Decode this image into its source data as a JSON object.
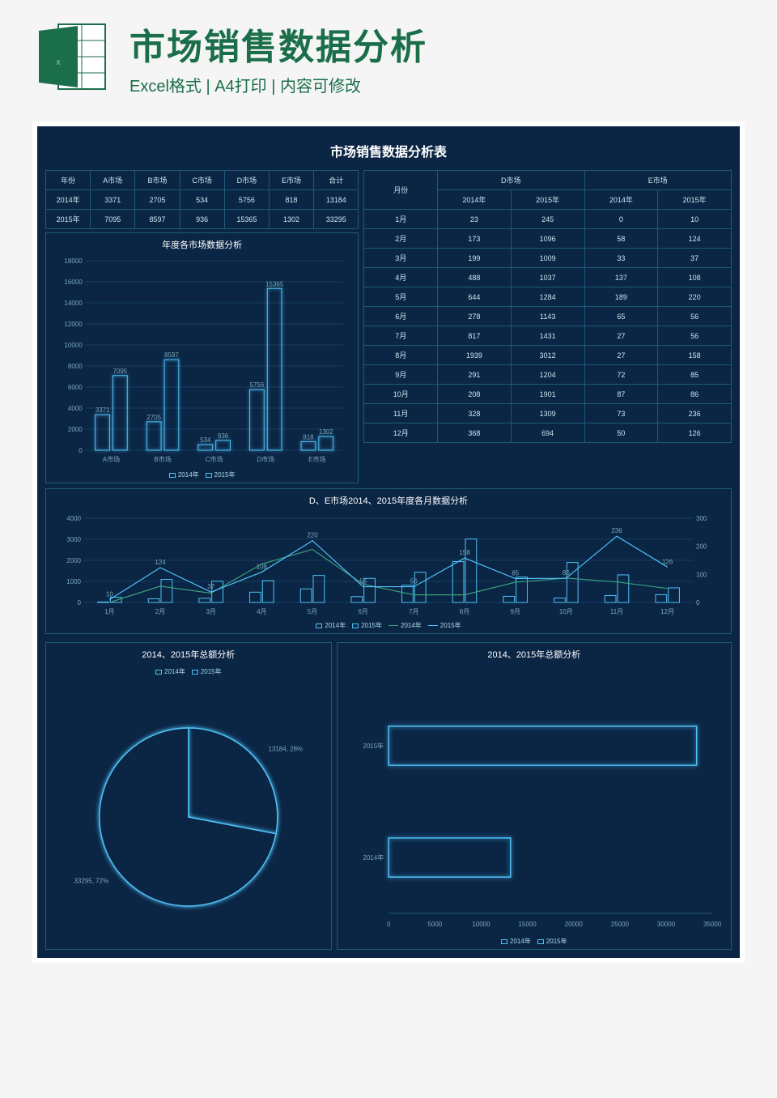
{
  "header": {
    "title": "市场销售数据分析",
    "subtitle": "Excel格式 | A4打印 | 内容可修改"
  },
  "sheet": {
    "title": "市场销售数据分析表",
    "background_color": "#0b2545",
    "border_color": "#1e5a78",
    "text_color": "#c8e8f0",
    "accent_color": "#4fc3f7"
  },
  "summary_table": {
    "columns": [
      "年份",
      "A市场",
      "B市场",
      "C市场",
      "D市场",
      "E市场",
      "合计"
    ],
    "rows": [
      [
        "2014年",
        3371,
        2705,
        534,
        5756,
        818,
        13184
      ],
      [
        "2015年",
        7095,
        8597,
        936,
        15365,
        1302,
        33295
      ]
    ]
  },
  "bar_chart": {
    "title": "年度各市场数据分析",
    "type": "bar",
    "categories": [
      "A市场",
      "B市场",
      "C市场",
      "D市场",
      "E市场"
    ],
    "series": [
      {
        "name": "2014年",
        "values": [
          3371,
          2705,
          534,
          5756,
          818
        ],
        "color": "#1a6e8e",
        "outline": "#4fc3f7"
      },
      {
        "name": "2015年",
        "values": [
          7095,
          8597,
          936,
          15365,
          1302
        ],
        "color": "#0b2545",
        "outline": "#4fc3f7"
      }
    ],
    "ylim": [
      0,
      18000
    ],
    "ytick_step": 2000,
    "grid_color": "#1e5a78",
    "label_fontsize": 8
  },
  "monthly_table": {
    "group_headers": [
      {
        "label": "D市场",
        "span": 2
      },
      {
        "label": "E市场",
        "span": 2
      }
    ],
    "columns": [
      "月份",
      "2014年",
      "2015年",
      "2014年",
      "2015年"
    ],
    "rows": [
      [
        "1月",
        23,
        245,
        0,
        10
      ],
      [
        "2月",
        173,
        1096,
        58,
        124
      ],
      [
        "3月",
        199,
        1009,
        33,
        37
      ],
      [
        "4月",
        488,
        1037,
        137,
        108
      ],
      [
        "5月",
        644,
        1284,
        189,
        220
      ],
      [
        "6月",
        278,
        1143,
        65,
        56
      ],
      [
        "7月",
        817,
        1431,
        27,
        56
      ],
      [
        "8月",
        1939,
        3012,
        27,
        158
      ],
      [
        "9月",
        291,
        1204,
        72,
        85
      ],
      [
        "10月",
        208,
        1901,
        87,
        86
      ],
      [
        "11月",
        328,
        1309,
        73,
        236
      ],
      [
        "12月",
        368,
        694,
        50,
        126
      ]
    ]
  },
  "combo_chart": {
    "title": "D、E市场2014、2015年度各月数据分析",
    "type": "combo",
    "categories": [
      "1月",
      "2月",
      "3月",
      "4月",
      "5月",
      "6月",
      "7月",
      "8月",
      "9月",
      "10月",
      "11月",
      "12月"
    ],
    "bar_series": [
      {
        "name": "2014年",
        "values": [
          23,
          173,
          199,
          488,
          644,
          278,
          817,
          1939,
          291,
          208,
          328,
          368
        ],
        "axis": "left",
        "outline": "#4fc3f7"
      },
      {
        "name": "2015年",
        "values": [
          245,
          1096,
          1009,
          1037,
          1284,
          1143,
          1431,
          3012,
          1204,
          1901,
          1309,
          694
        ],
        "axis": "left",
        "outline": "#4fc3f7"
      }
    ],
    "line_series": [
      {
        "name": "2014年",
        "values": [
          0,
          58,
          33,
          137,
          189,
          65,
          27,
          27,
          72,
          87,
          73,
          50
        ],
        "axis": "right",
        "color": "#3aa07a"
      },
      {
        "name": "2015年",
        "values": [
          10,
          124,
          37,
          108,
          220,
          56,
          56,
          158,
          85,
          86,
          236,
          126
        ],
        "axis": "right",
        "color": "#4fc3f7"
      }
    ],
    "data_labels": [
      10,
      124,
      37,
      108,
      220,
      56,
      56,
      158,
      85,
      86,
      236,
      126
    ],
    "left_ylim": [
      0,
      4000
    ],
    "left_ytick_step": 1000,
    "right_ylim": [
      0,
      300
    ],
    "right_ytick_step": 100,
    "grid_color": "#1e5a78"
  },
  "pie_chart": {
    "title": "2014、2015年总额分析",
    "type": "pie",
    "legend": [
      "2014年",
      "2015年"
    ],
    "slices": [
      {
        "label": "13184, 28%",
        "value": 13184,
        "pct": 28,
        "outline": "#4fc3f7"
      },
      {
        "label": "33295, 72%",
        "value": 33295,
        "pct": 72,
        "outline": "#4fc3f7"
      }
    ],
    "fill_color": "#0b2545"
  },
  "hbar_chart": {
    "title": "2014、2015年总额分析",
    "type": "hbar",
    "categories": [
      "2015年",
      "2014年"
    ],
    "values": [
      33295,
      13184
    ],
    "xlim": [
      0,
      35000
    ],
    "xtick_step": 5000,
    "outline": "#4fc3f7",
    "legend": [
      "2014年",
      "2015年"
    ]
  }
}
